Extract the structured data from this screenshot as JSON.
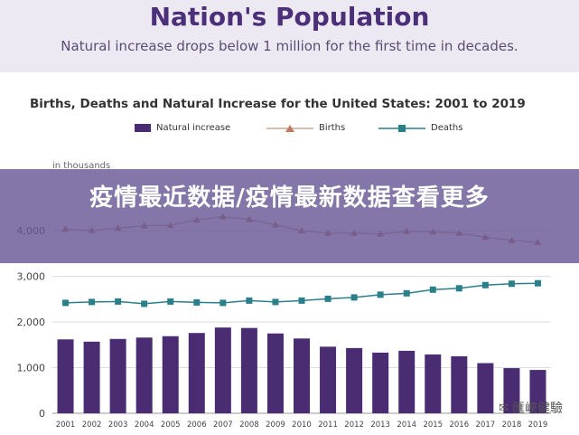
{
  "header": {
    "title": "Nation's Population",
    "subtitle": "Natural increase drops below 1 million for the first time in decades."
  },
  "banner": {
    "title": "疫情最近数据/疫情最新数据查看更多"
  },
  "watermark": {
    "text": "匯峽健驗"
  },
  "colors": {
    "natural_increase": "#4a2c73",
    "births": "#c9a89a",
    "births_marker": "#c27a60",
    "deaths": "#2b7f8a",
    "banner": "#6958a0"
  },
  "chart_data": {
    "type": "bar",
    "title": "Births, Deaths and Natural Increase for the United States: 2001 to 2019",
    "unit_label": "in thousands",
    "categories": [
      "2001",
      "2002",
      "2003",
      "2004",
      "2005",
      "2006",
      "2007",
      "2008",
      "2009",
      "2010",
      "2011",
      "2012",
      "2013",
      "2014",
      "2015",
      "2016",
      "2017",
      "2018",
      "2019"
    ],
    "ylim": [
      0,
      4500
    ],
    "yticks": [
      "0",
      "1,000",
      "2,000",
      "3,000",
      "4,000"
    ],
    "ytick_values": [
      0,
      1000,
      2000,
      3000,
      4000
    ],
    "legend_placement": "top",
    "grid": true,
    "series": [
      {
        "name": "Natural increase",
        "kind": "bar",
        "values": [
          1620,
          1570,
          1630,
          1660,
          1690,
          1760,
          1880,
          1870,
          1750,
          1640,
          1460,
          1430,
          1330,
          1370,
          1290,
          1250,
          1100,
          990,
          950
        ]
      },
      {
        "name": "Births",
        "kind": "line",
        "values": [
          4040,
          4010,
          4060,
          4110,
          4120,
          4240,
          4310,
          4250,
          4130,
          4000,
          3950,
          3950,
          3930,
          3990,
          3980,
          3950,
          3860,
          3790,
          3750
        ]
      },
      {
        "name": "Deaths",
        "kind": "line",
        "values": [
          2420,
          2440,
          2450,
          2400,
          2450,
          2430,
          2420,
          2470,
          2440,
          2470,
          2510,
          2540,
          2600,
          2630,
          2710,
          2740,
          2810,
          2840,
          2850
        ]
      }
    ]
  }
}
